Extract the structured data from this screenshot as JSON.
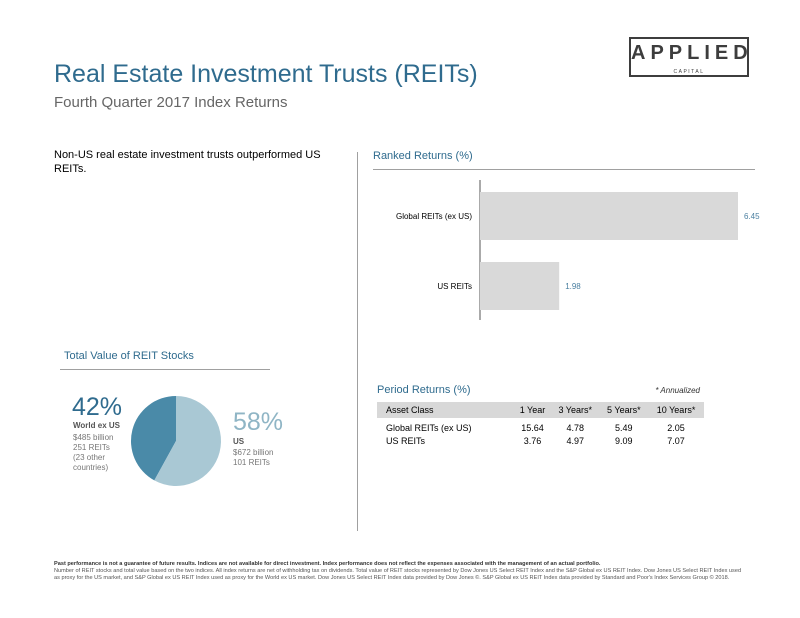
{
  "header": {
    "title": "Real Estate Investment Trusts (REITs)",
    "subtitle": "Fourth Quarter 2017 Index Returns",
    "logo_text": "APPLIED",
    "logo_subtext": "CAPITAL"
  },
  "summary_text": "Non-US real estate investment trusts outperformed US REITs.",
  "ranked_returns": {
    "title": "Ranked Returns (%)"
  },
  "chart_data": [
    {
      "type": "bar",
      "orientation": "horizontal",
      "title": "Ranked Returns (%)",
      "categories": [
        "Global REITs (ex US)",
        "US REITs"
      ],
      "values": [
        6.45,
        1.98
      ],
      "data_labels": [
        "6.45",
        "1.98"
      ],
      "xlim": [
        0,
        7
      ],
      "bar_color": "#d9d9d9",
      "label_color": "#4a7fa0",
      "grid": false
    },
    {
      "type": "pie",
      "title": "Total Value of REIT Stocks",
      "slices": [
        {
          "name": "World ex US",
          "value": 42,
          "color": "#4a8aa8"
        },
        {
          "name": "US",
          "value": 58,
          "color": "#a9c8d4"
        }
      ]
    }
  ],
  "pie": {
    "title": "Total Value of REIT Stocks",
    "world": {
      "pct": "42%",
      "name": "World ex US",
      "lines": [
        "$485 billion",
        "251 REITs",
        "(23 other",
        "countries)"
      ]
    },
    "us": {
      "pct": "58%",
      "name": "US",
      "lines": [
        "$672 billion",
        "101 REITs"
      ]
    }
  },
  "period_returns": {
    "title": "Period Returns (%)",
    "note": "* Annualized",
    "columns": [
      "Asset Class",
      "1 Year",
      "3 Years*",
      "5 Years*",
      "10 Years*"
    ],
    "rows": [
      [
        "Global REITs (ex US)",
        "15.64",
        "4.78",
        "5.49",
        "2.05"
      ],
      [
        "US REITs",
        "3.76",
        "4.97",
        "9.09",
        "7.07"
      ]
    ]
  },
  "footer": {
    "bold": "Past performance is not a guarantee of future results. Indices are not available for direct investment. Index performance does not reflect the expenses associated with the management of an actual portfolio.",
    "text": "Number of REIT stocks and total value based on the two indices. All index returns are net of withholding tax on dividends. Total value of REIT stocks represented by Dow Jones US Select REIT Index and the S&P Global ex US REIT Index. Dow Jones US Select REIT Index used as proxy for the US market, and S&P Global ex US REIT Index used as proxy for the World ex US market. Dow Jones US Select REIT Index data provided by Dow Jones ©. S&P Global ex US REIT Index data provided by Standard and Poor's Index Services Group © 2018."
  }
}
